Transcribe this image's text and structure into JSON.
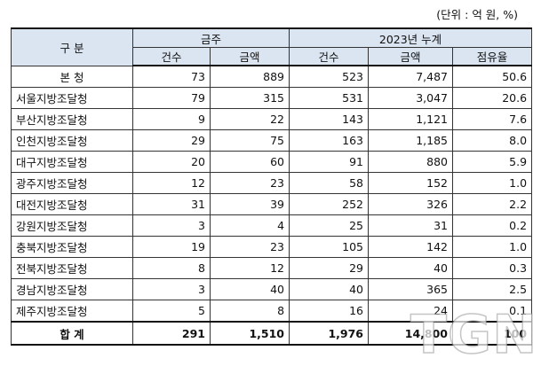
{
  "unit_note": "(단위 : 억 원, %)",
  "header": {
    "category": "구 분",
    "group_week": "금주",
    "group_cumulative": "2023년 누계",
    "col_count": "건수",
    "col_amount": "금액",
    "col_count2": "건수",
    "col_amount2": "금액",
    "col_share": "점유율"
  },
  "rows": [
    {
      "name": "본  청",
      "week_count": "73",
      "week_amount": "889",
      "cum_count": "523",
      "cum_amount": "7,487",
      "share": "50.6"
    },
    {
      "name": "서울지방조달청",
      "week_count": "79",
      "week_amount": "315",
      "cum_count": "531",
      "cum_amount": "3,047",
      "share": "20.6"
    },
    {
      "name": "부산지방조달청",
      "week_count": "9",
      "week_amount": "22",
      "cum_count": "143",
      "cum_amount": "1,121",
      "share": "7.6"
    },
    {
      "name": "인천지방조달청",
      "week_count": "29",
      "week_amount": "75",
      "cum_count": "163",
      "cum_amount": "1,185",
      "share": "8.0"
    },
    {
      "name": "대구지방조달청",
      "week_count": "20",
      "week_amount": "60",
      "cum_count": "91",
      "cum_amount": "880",
      "share": "5.9"
    },
    {
      "name": "광주지방조달청",
      "week_count": "12",
      "week_amount": "23",
      "cum_count": "58",
      "cum_amount": "152",
      "share": "1.0"
    },
    {
      "name": "대전지방조달청",
      "week_count": "31",
      "week_amount": "39",
      "cum_count": "252",
      "cum_amount": "326",
      "share": "2.2"
    },
    {
      "name": "강원지방조달청",
      "week_count": "3",
      "week_amount": "4",
      "cum_count": "25",
      "cum_amount": "31",
      "share": "0.2"
    },
    {
      "name": "충북지방조달청",
      "week_count": "19",
      "week_amount": "23",
      "cum_count": "105",
      "cum_amount": "142",
      "share": "1.0"
    },
    {
      "name": "전북지방조달청",
      "week_count": "8",
      "week_amount": "12",
      "cum_count": "29",
      "cum_amount": "40",
      "share": "0.3"
    },
    {
      "name": "경남지방조달청",
      "week_count": "3",
      "week_amount": "40",
      "cum_count": "40",
      "cum_amount": "365",
      "share": "2.5"
    },
    {
      "name": "제주지방조달청",
      "week_count": "5",
      "week_amount": "8",
      "cum_count": "16",
      "cum_amount": "24",
      "share": "0.1"
    }
  ],
  "total": {
    "name": "합  계",
    "week_count": "291",
    "week_amount": "1,510",
    "cum_count": "1,976",
    "cum_amount": "14,800",
    "share": "100"
  },
  "watermark": "TGN"
}
